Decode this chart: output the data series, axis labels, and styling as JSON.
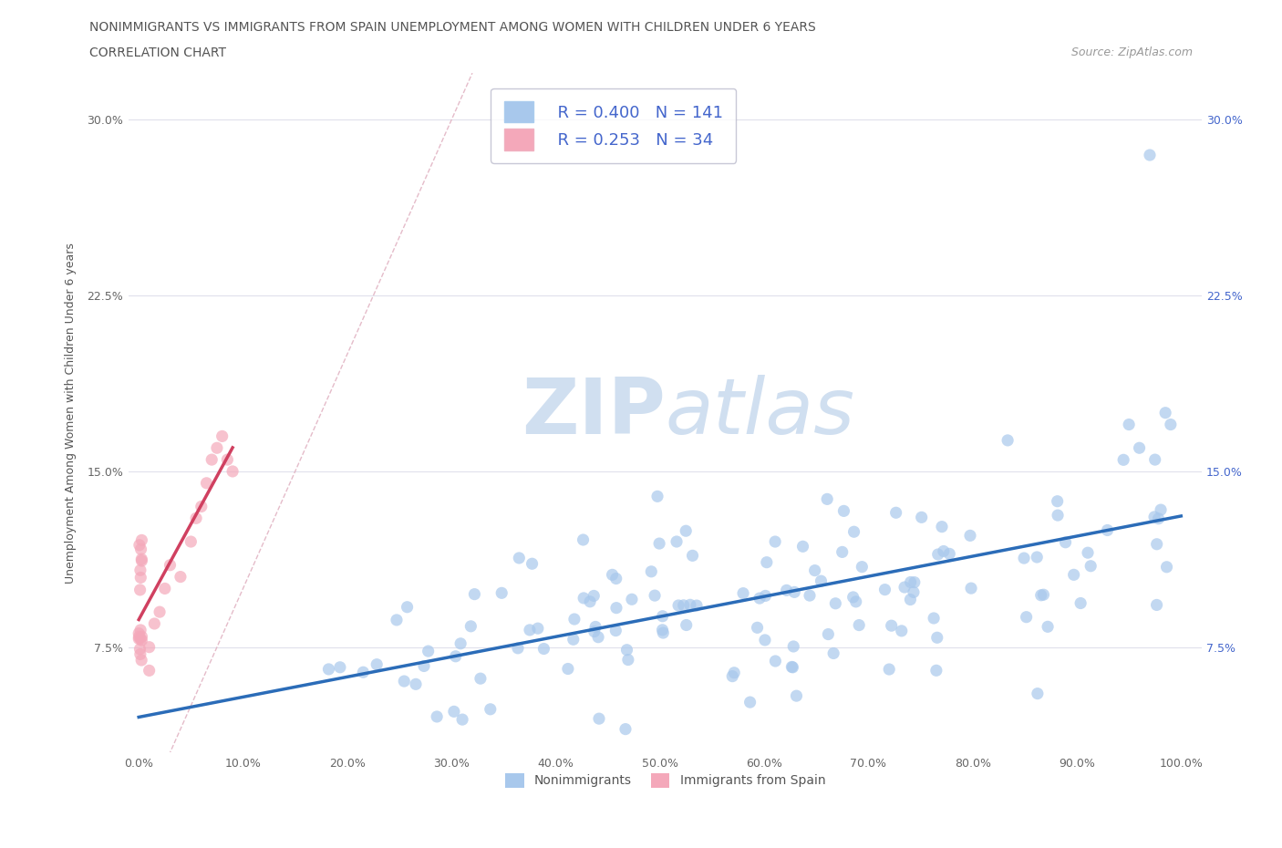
{
  "title_line1": "NONIMMIGRANTS VS IMMIGRANTS FROM SPAIN UNEMPLOYMENT AMONG WOMEN WITH CHILDREN UNDER 6 YEARS",
  "title_line2": "CORRELATION CHART",
  "source": "Source: ZipAtlas.com",
  "ylabel": "Unemployment Among Women with Children Under 6 years",
  "xlim": [
    -0.01,
    1.02
  ],
  "ylim": [
    0.03,
    0.32
  ],
  "xticks": [
    0.0,
    0.1,
    0.2,
    0.3,
    0.4,
    0.5,
    0.6,
    0.7,
    0.8,
    0.9,
    1.0
  ],
  "xticklabels": [
    "0.0%",
    "10.0%",
    "20.0%",
    "30.0%",
    "40.0%",
    "50.0%",
    "60.0%",
    "70.0%",
    "80.0%",
    "90.0%",
    "100.0%"
  ],
  "ytick_vals": [
    0.075,
    0.15,
    0.225,
    0.3
  ],
  "yticklabels": [
    "7.5%",
    "15.0%",
    "22.5%",
    "30.0%"
  ],
  "nonimm_color": "#A8C8EC",
  "imm_color": "#F4A8BA",
  "nonimm_line_color": "#2B6CB8",
  "imm_line_color": "#D04060",
  "diagonal_color": "#E0B0C0",
  "legend_r1": "R = 0.400",
  "legend_n1": "N = 141",
  "legend_r2": "R = 0.253",
  "legend_n2": "N = 34",
  "legend_text_color": "#4466CC",
  "title_color": "#555555",
  "source_color": "#999999",
  "background_color": "#FFFFFF",
  "grid_color": "#E0E0EC",
  "watermark_color": "#D0DFF0",
  "seed": 123
}
